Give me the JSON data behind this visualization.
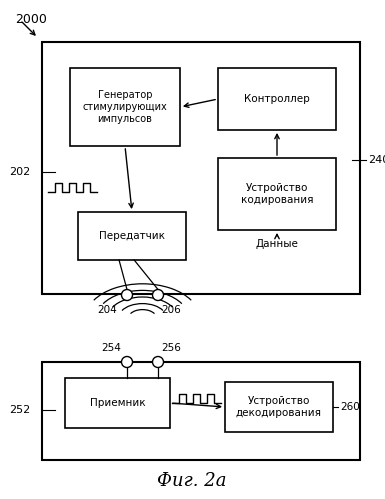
{
  "title": "Фиг. 2а",
  "label_2000": "2000",
  "label_202": "202",
  "label_240": "240",
  "label_204": "204",
  "label_206": "206",
  "label_254": "254",
  "label_256": "256",
  "label_252": "252",
  "label_260": "260",
  "box_generator": "Генератор\nстимулирующих\nимпульсов",
  "box_controller": "Контроллер",
  "box_encoder": "Устройство\nкодирования",
  "box_transmitter": "Передатчик",
  "box_receiver": "Приемник",
  "box_decoder": "Устройство\nдекодирования",
  "label_data": "Данные",
  "bg_color": "#ffffff"
}
